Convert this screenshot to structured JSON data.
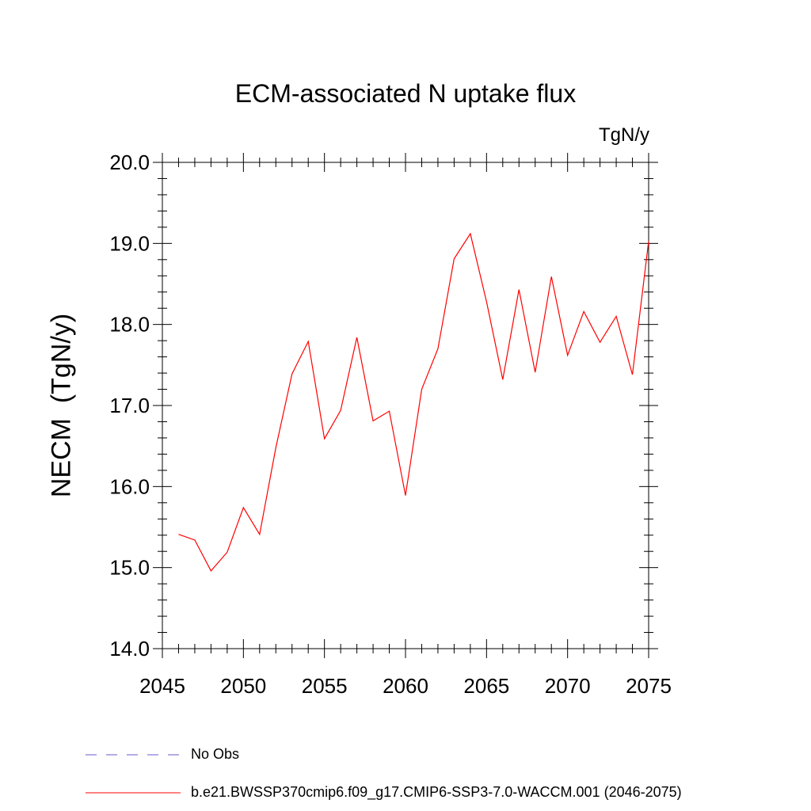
{
  "chart_data": {
    "type": "line",
    "title": "ECM-associated N uptake flux",
    "units": "TgN/y",
    "ylabel": "NECM  (TgN/y)",
    "xlabel": "",
    "xlim": [
      2045,
      2075
    ],
    "ylim": [
      14.0,
      20.0
    ],
    "x_ticks": [
      2045,
      2050,
      2055,
      2060,
      2065,
      2070,
      2075
    ],
    "y_ticks": [
      "14.0",
      "15.0",
      "16.0",
      "17.0",
      "18.0",
      "19.0",
      "20.0"
    ],
    "grid": false,
    "legend_position": "bottom",
    "series": [
      {
        "name": "b.e21.BWSSP370cmip6.f09_g17.CMIP6-SSP3-7.0-WACCM.001 (2046-2075)",
        "color": "#ff0000",
        "x": [
          2046,
          2047,
          2048,
          2049,
          2050,
          2051,
          2052,
          2053,
          2054,
          2055,
          2056,
          2057,
          2058,
          2059,
          2060,
          2061,
          2062,
          2063,
          2064,
          2065,
          2066,
          2067,
          2068,
          2069,
          2070,
          2071,
          2072,
          2073,
          2074,
          2075
        ],
        "values": [
          15.41,
          15.34,
          14.96,
          15.19,
          15.74,
          15.41,
          16.48,
          17.39,
          17.79,
          16.59,
          16.94,
          17.84,
          16.81,
          16.93,
          15.89,
          17.2,
          17.7,
          18.81,
          19.12,
          18.28,
          17.32,
          18.43,
          17.41,
          18.59,
          17.62,
          18.16,
          17.78,
          18.1,
          17.38,
          19.03
        ]
      },
      {
        "name": "No Obs",
        "color": "#6a5acd",
        "dashed": true,
        "x": [],
        "values": []
      }
    ]
  }
}
